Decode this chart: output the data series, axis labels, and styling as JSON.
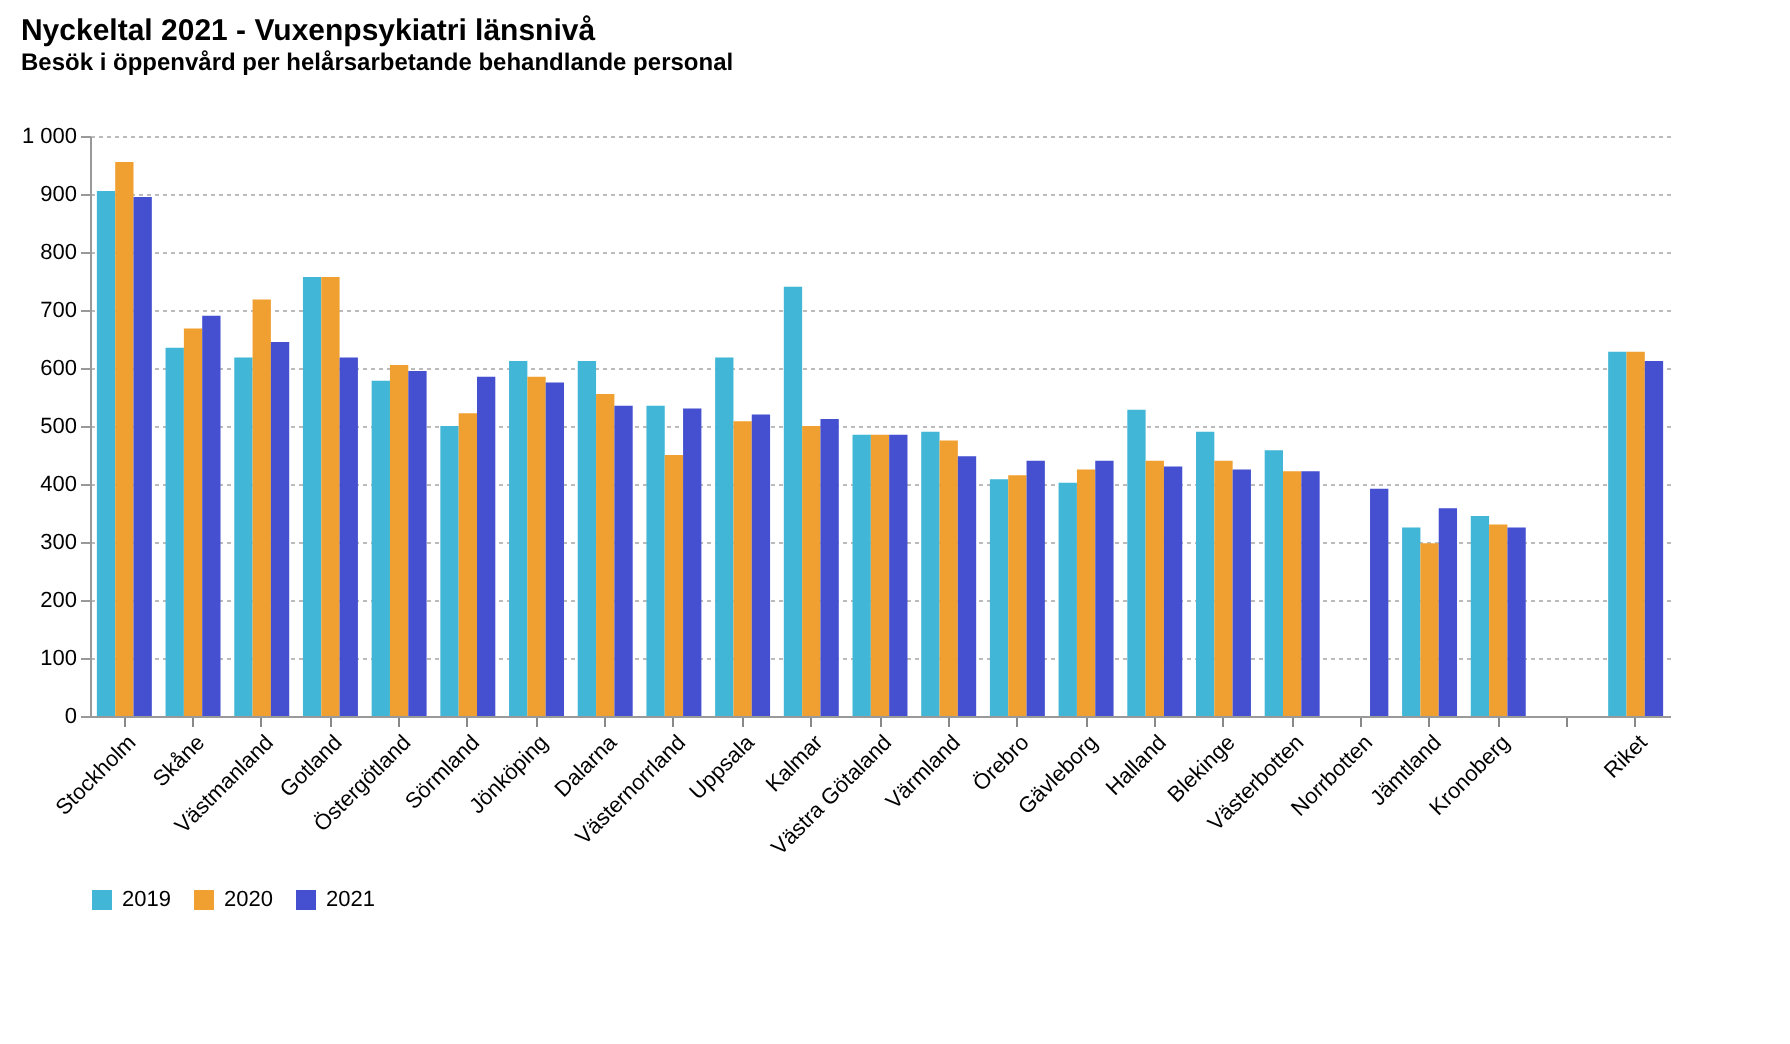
{
  "chart_data": {
    "type": "bar",
    "title": "Nyckeltal 2021 - Vuxenpsykiatri länsnivå",
    "subtitle": "Besök i öppenvård per helårsarbetande behandlande personal",
    "categories": [
      "Stockholm",
      "Skåne",
      "Västmanland",
      "Gotland",
      "Östergötland",
      "Sörmland",
      "Jönköping",
      "Dalarna",
      "Västernorrland",
      "Uppsala",
      "Kalmar",
      "Västra Götaland",
      "Värmland",
      "Örebro",
      "Gävleborg",
      "Halland",
      "Blekinge",
      "Västerbotten",
      "Norrbotten",
      "Jämtland",
      "Kronoberg",
      null,
      "Riket"
    ],
    "series": [
      {
        "name": "2019",
        "color": "#41b6d6",
        "values": [
          905,
          635,
          618,
          757,
          578,
          500,
          612,
          612,
          535,
          618,
          740,
          485,
          490,
          408,
          402,
          528,
          490,
          458,
          null,
          325,
          345,
          null,
          628
        ]
      },
      {
        "name": "2020",
        "color": "#f0a030",
        "values": [
          955,
          668,
          718,
          757,
          605,
          522,
          585,
          555,
          450,
          508,
          500,
          485,
          475,
          415,
          425,
          440,
          440,
          422,
          null,
          298,
          330,
          null,
          628
        ]
      },
      {
        "name": "2021",
        "color": "#4450d0",
        "values": [
          895,
          690,
          645,
          618,
          595,
          585,
          575,
          535,
          530,
          520,
          512,
          485,
          448,
          440,
          440,
          430,
          425,
          422,
          392,
          358,
          325,
          null,
          612
        ]
      }
    ],
    "ylim": [
      0,
      1000
    ],
    "yticks": [
      0,
      100,
      200,
      300,
      400,
      500,
      600,
      700,
      800,
      900,
      {
        "value": 1000,
        "label": "1 000"
      }
    ],
    "grid": "y",
    "legend": "bottom"
  }
}
